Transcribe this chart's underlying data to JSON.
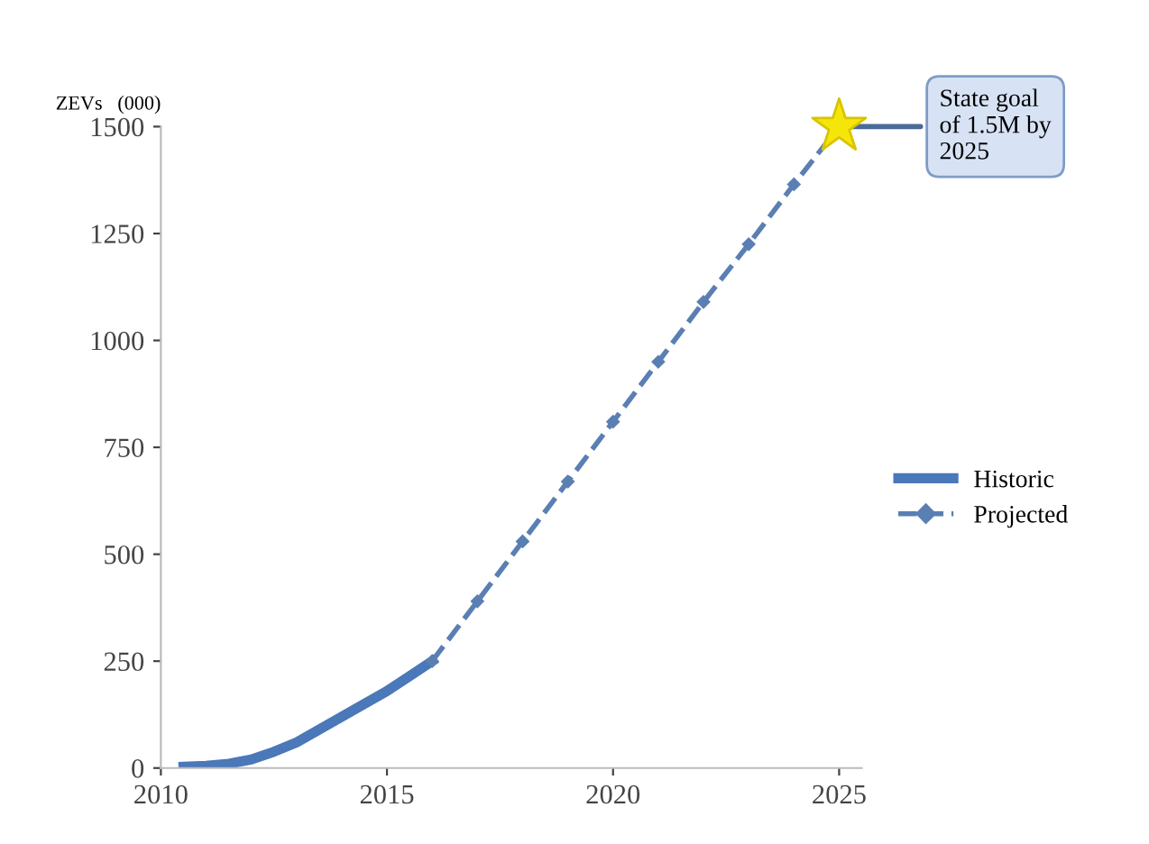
{
  "chart_data": {
    "type": "line",
    "ylabel": "ZEVs   (000)",
    "xlim": [
      2010,
      2025.5
    ],
    "xticks": [
      2010,
      2015,
      2020,
      2025
    ],
    "ylim": [
      0,
      1500
    ],
    "yticks": [
      0,
      250,
      500,
      750,
      1000,
      1250,
      1500
    ],
    "grid": false,
    "legend": "right",
    "series": [
      {
        "name": "Historic",
        "color": "#4a78b8",
        "line_style": "solid",
        "marker": "none",
        "x": [
          2010.5,
          2011,
          2011.5,
          2012,
          2012.5,
          2013,
          2013.5,
          2014,
          2014.5,
          2015,
          2015.5,
          2016
        ],
        "values": [
          3,
          5,
          10,
          20,
          38,
          60,
          90,
          120,
          150,
          180,
          215,
          250
        ]
      },
      {
        "name": "Projected",
        "color": "#5a7fb2",
        "line_style": "dashed",
        "marker": "diamond",
        "x": [
          2016,
          2017,
          2018,
          2019,
          2020,
          2021,
          2022,
          2023,
          2024,
          2025
        ],
        "values": [
          250,
          390,
          530,
          670,
          810,
          950,
          1090,
          1225,
          1365,
          1500
        ]
      },
      {
        "type": "scatter",
        "color": "#f5e60a",
        "marker": "star",
        "x": [
          2025
        ],
        "values": [
          1500
        ]
      }
    ],
    "annotations": [
      {
        "text": "State goal\nof 1.5M by\n2025",
        "x": 2025,
        "y": 1500
      }
    ]
  }
}
